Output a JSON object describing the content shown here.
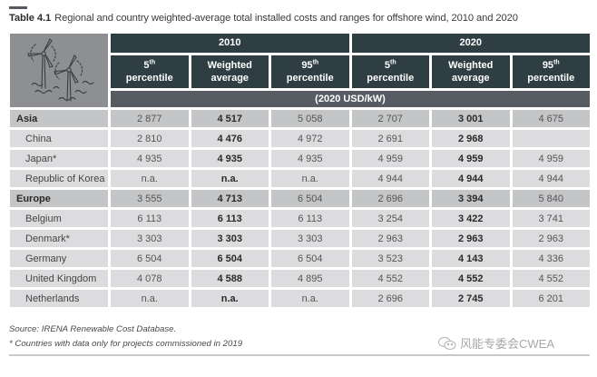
{
  "caption": {
    "label": "Table 4.1",
    "text": "Regional and country weighted-average total installed costs and ranges for offshore wind, 2010 and 2020"
  },
  "header": {
    "icon": "offshore-wind-turbines-icon",
    "years": [
      "2010",
      "2020"
    ],
    "subheaders": [
      {
        "main": "5",
        "sup": "th",
        "line2": "percentile"
      },
      {
        "main": "Weighted",
        "sup": "",
        "line2": "average"
      },
      {
        "main": "95",
        "sup": "th",
        "line2": "percentile"
      },
      {
        "main": "5",
        "sup": "th",
        "line2": "percentile"
      },
      {
        "main": "Weighted",
        "sup": "",
        "line2": "average"
      },
      {
        "main": "95",
        "sup": "th",
        "line2": "percentile"
      }
    ],
    "unit": "(2020 USD/kW)"
  },
  "rows": [
    {
      "type": "region",
      "label": "Asia",
      "values": [
        "2 877",
        "4 517",
        "5 058",
        "2 707",
        "3 001",
        "4 675"
      ]
    },
    {
      "type": "country",
      "label": "China",
      "values": [
        "2 810",
        "4 476",
        "4 972",
        "2 691",
        "2 968",
        ""
      ]
    },
    {
      "type": "country",
      "label": "Japan*",
      "values": [
        "4 935",
        "4 935",
        "4 935",
        "4 959",
        "4 959",
        "4 959"
      ]
    },
    {
      "type": "country",
      "label": "Republic of Korea",
      "values": [
        "n.a.",
        "n.a.",
        "n.a.",
        "4 944",
        "4 944",
        "4 944"
      ]
    },
    {
      "type": "region",
      "label": "Europe",
      "values": [
        "3 555",
        "4 713",
        "6 504",
        "2 696",
        "3 394",
        "5 840"
      ]
    },
    {
      "type": "country",
      "label": "Belgium",
      "values": [
        "6 113",
        "6 113",
        "6 113",
        "3 254",
        "3 422",
        "3 741"
      ]
    },
    {
      "type": "country",
      "label": "Denmark*",
      "values": [
        "3 303",
        "3 303",
        "3 303",
        "2 963",
        "2 963",
        "2 963"
      ]
    },
    {
      "type": "country",
      "label": "Germany",
      "values": [
        "6 504",
        "6 504",
        "6 504",
        "3 523",
        "4 143",
        "4 336"
      ]
    },
    {
      "type": "country",
      "label": "United Kingdom",
      "values": [
        "4 078",
        "4 588",
        "4 895",
        "4 552",
        "4 552",
        "4 552"
      ]
    },
    {
      "type": "country",
      "label": "Netherlands",
      "values": [
        "n.a.",
        "n.a.",
        "n.a.",
        "2 696",
        "2 745",
        "6 201"
      ]
    }
  ],
  "footer": {
    "source": "Source: IRENA Renewable Cost Database.",
    "note": "* Countries with data only for projects commissioned in 2019"
  },
  "watermark": {
    "icon": "wechat-icon",
    "text": "风能专委会CWEA"
  }
}
